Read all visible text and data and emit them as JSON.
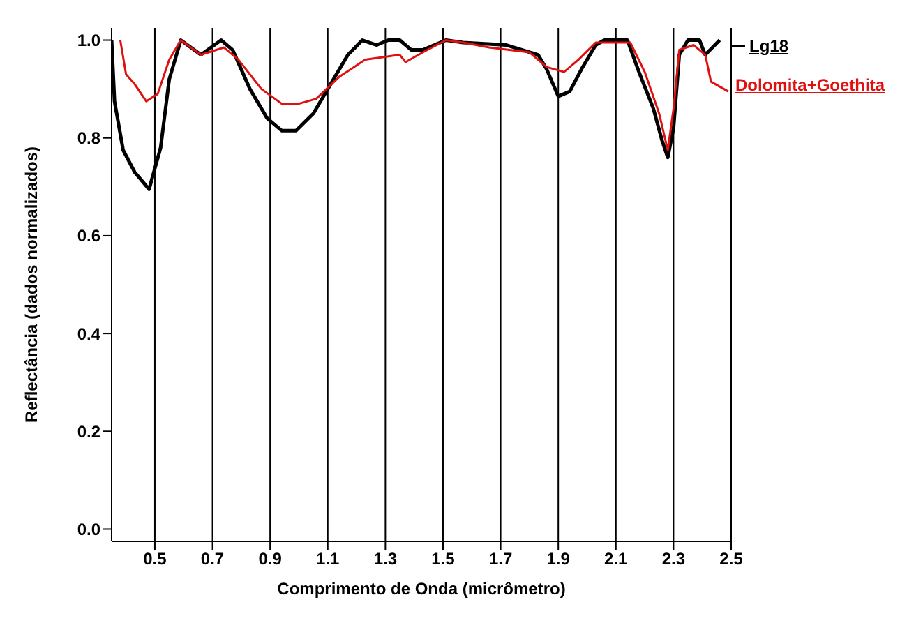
{
  "chart_data": {
    "type": "line",
    "xlabel": "Comprimento de Onda (micrômetro)",
    "ylabel": "Reflectância (dados normalizados)",
    "xlim": [
      0.35,
      2.5
    ],
    "ylim": [
      -0.025,
      1.025
    ],
    "xticks": [
      0.5,
      0.7,
      0.9,
      1.1,
      1.3,
      1.5,
      1.7,
      1.9,
      2.1,
      2.3,
      2.5
    ],
    "yticks": [
      {
        "value": 0,
        "label": "0.0"
      },
      0.2,
      0.4,
      0.6,
      0.8,
      {
        "value": 1,
        "label": "1.0"
      }
    ],
    "grid": "x",
    "legend": "right",
    "marker": "none",
    "line_style": "solid",
    "series": [
      {
        "name": "Lg18",
        "color": "#000000",
        "x": [
          0.35,
          0.36,
          0.39,
          0.43,
          0.48,
          0.52,
          0.55,
          0.59,
          0.66,
          0.73,
          0.77,
          0.83,
          0.89,
          0.94,
          0.99,
          1.05,
          1.11,
          1.17,
          1.22,
          1.27,
          1.31,
          1.35,
          1.39,
          1.43,
          1.51,
          1.57,
          1.72,
          1.83,
          1.86,
          1.9,
          1.94,
          1.98,
          2.03,
          2.06,
          2.14,
          2.18,
          2.23,
          2.26,
          2.28,
          2.3,
          2.32,
          2.35,
          2.39,
          2.41,
          2.46
        ],
        "values": [
          1.0,
          0.875,
          0.775,
          0.73,
          0.695,
          0.78,
          0.92,
          1.0,
          0.97,
          1.0,
          0.98,
          0.9,
          0.84,
          0.815,
          0.815,
          0.85,
          0.91,
          0.97,
          1.0,
          0.99,
          1.0,
          1.0,
          0.98,
          0.98,
          1.0,
          0.995,
          0.99,
          0.97,
          0.94,
          0.885,
          0.895,
          0.94,
          0.99,
          1.0,
          1.0,
          0.935,
          0.86,
          0.795,
          0.76,
          0.82,
          0.97,
          1.0,
          1.0,
          0.97,
          1.0
        ]
      },
      {
        "name": "Dolomita+Goethita",
        "color": "#e01010",
        "x": [
          0.38,
          0.4,
          0.43,
          0.47,
          0.51,
          0.55,
          0.59,
          0.66,
          0.74,
          0.79,
          0.87,
          0.94,
          1.0,
          1.06,
          1.14,
          1.23,
          1.35,
          1.37,
          1.43,
          1.51,
          1.57,
          1.66,
          1.8,
          1.86,
          1.92,
          1.97,
          2.03,
          2.15,
          2.2,
          2.25,
          2.28,
          2.3,
          2.32,
          2.37,
          2.41,
          2.43,
          2.49
        ],
        "values": [
          1.0,
          0.93,
          0.91,
          0.875,
          0.89,
          0.96,
          1.0,
          0.97,
          0.985,
          0.96,
          0.9,
          0.87,
          0.87,
          0.88,
          0.925,
          0.96,
          0.97,
          0.955,
          0.975,
          1.0,
          0.995,
          0.985,
          0.975,
          0.945,
          0.935,
          0.96,
          0.995,
          0.995,
          0.935,
          0.85,
          0.775,
          0.86,
          0.98,
          0.99,
          0.97,
          0.915,
          0.895
        ]
      }
    ]
  }
}
